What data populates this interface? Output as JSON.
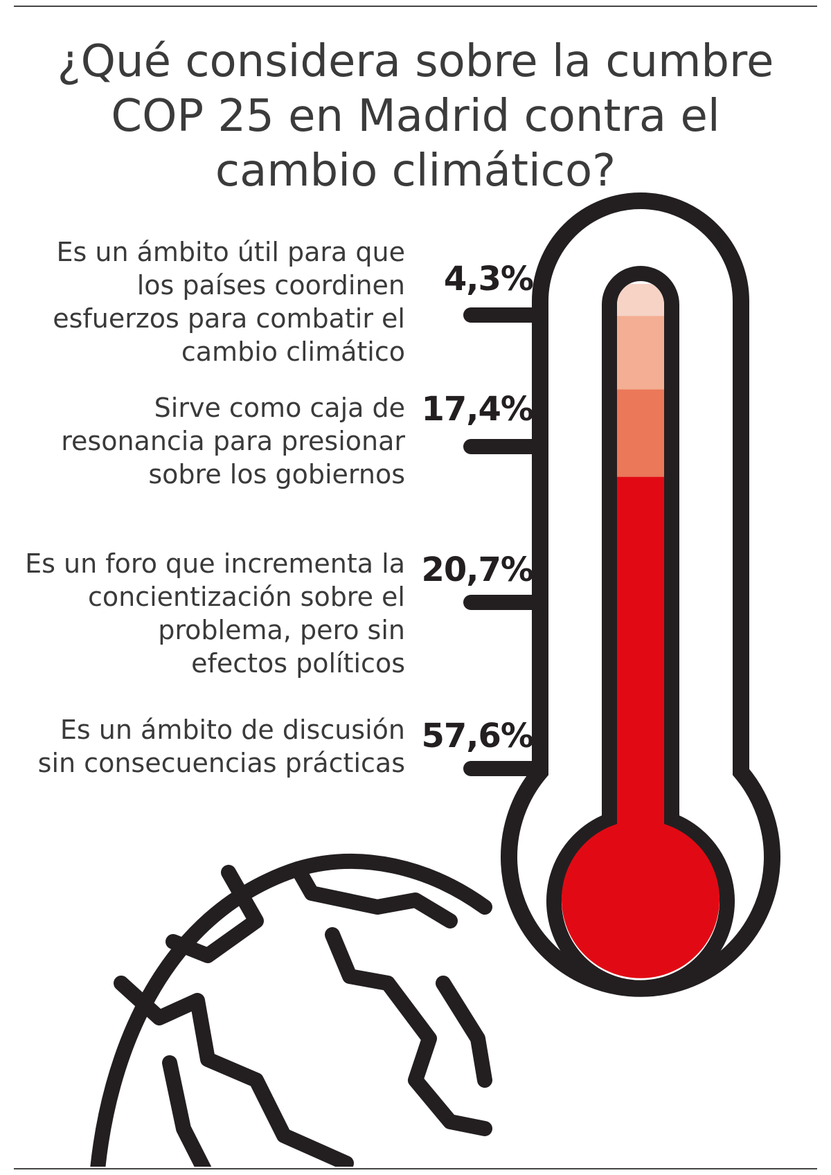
{
  "chart_data": {
    "type": "bar",
    "title": "¿Qué considera sobre la cumbre COP 25 en Madrid contra el cambio climático?",
    "categories": [
      "Es un ámbito útil para que los países coordinen esfuerzos para combatir el cambio climático",
      "Sirve como caja de resonancia para presionar sobre los gobiernos",
      "Es un foro que incrementa la concientización sobre el problema, pero sin efectos políticos",
      "Es un ámbito de discusión sin consecuencias prácticas"
    ],
    "values": [
      4.3,
      17.4,
      20.7,
      57.6
    ],
    "value_labels": [
      "4,3%",
      "17,4%",
      "20,7%",
      "57,6%"
    ],
    "colors": [
      "#f7d3c6",
      "#f3ae93",
      "#ea7859",
      "#e10a14"
    ],
    "unit": "%"
  },
  "title_lines": [
    "¿Qué considera sobre la cumbre",
    "COP 25 en Madrid contra el",
    "cambio climático?"
  ],
  "label_lines": [
    [
      "Es un ámbito útil para que",
      "los países coordinen",
      "esfuerzos para combatir el",
      "cambio climático"
    ],
    [
      "Sirve como caja de",
      "resonancia para presionar",
      "sobre los gobiernos"
    ],
    [
      "Es un foro que incrementa la",
      "concientización sobre el",
      "problema, pero sin",
      "efectos políticos"
    ],
    [
      "Es un ámbito de discusión",
      "sin consecuencias prácticas"
    ]
  ],
  "colors": {
    "outline": "#231f20",
    "text": "#3a3a3a",
    "tube_empty": "#ffffff"
  }
}
